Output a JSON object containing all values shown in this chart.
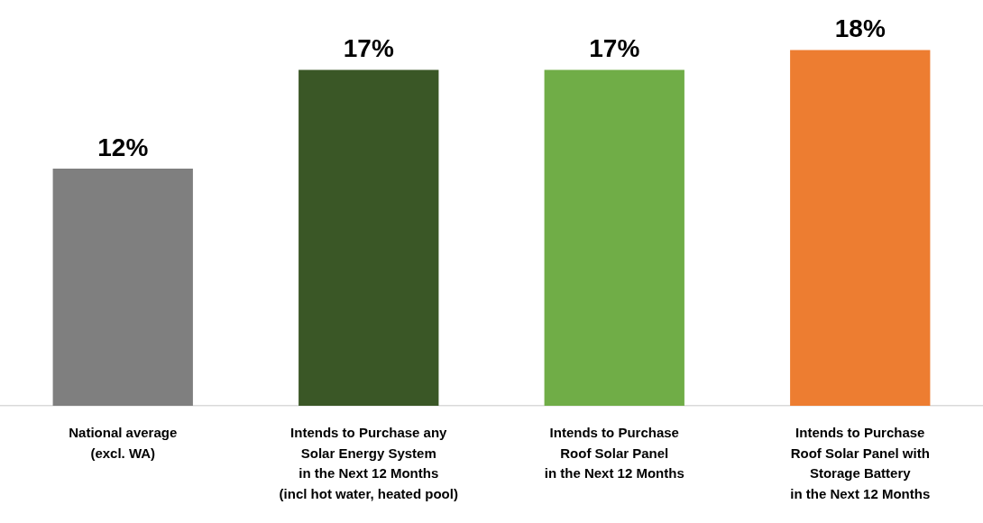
{
  "chart_data": {
    "type": "bar",
    "categories": [
      "National average\n(excl. WA)",
      "Intends to Purchase any\nSolar Energy System\nin the Next 12 Months\n(incl hot water, heated pool)",
      "Intends to Purchase\nRoof Solar Panel\nin the Next 12 Months",
      "Intends to Purchase\nRoof Solar Panel with\nStorage Battery\nin the Next 12 Months"
    ],
    "values": [
      12,
      17,
      17,
      18
    ],
    "colors": [
      "#7f7f7f",
      "#3a5726",
      "#70ad47",
      "#ed7d31"
    ],
    "value_labels": [
      "12%",
      "17%",
      "17%",
      "18%"
    ],
    "grid": false,
    "legend": false
  }
}
